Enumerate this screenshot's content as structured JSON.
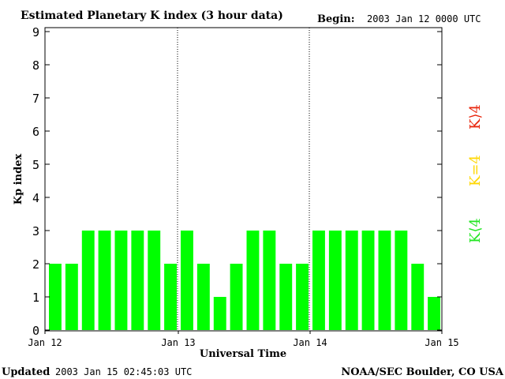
{
  "header": {
    "title": "Estimated Planetary K index (3 hour data)",
    "begin_label": "Begin:",
    "begin_value": "2003 Jan 12 0000 UTC"
  },
  "footer": {
    "updated_label": "Updated",
    "updated_value": "2003 Jan 15 02:45:03 UTC",
    "credit": "NOAA/SEC Boulder, CO USA"
  },
  "legend": {
    "items": [
      {
        "label": "K⟨4",
        "color": "#22e622"
      },
      {
        "label": "K=4",
        "color": "#ffd700"
      },
      {
        "label": "K⟩4",
        "color": "#e8250c"
      }
    ]
  },
  "chart_data": {
    "type": "bar",
    "title": "Estimated Planetary K index (3 hour data)",
    "xlabel": "Universal Time",
    "ylabel": "Kp index",
    "ylim": [
      0,
      9
    ],
    "yticks": [
      0,
      1,
      2,
      3,
      4,
      5,
      6,
      7,
      8,
      9
    ],
    "x_tick_labels": [
      "Jan 12",
      "Jan 13",
      "Jan 14",
      "Jan 15"
    ],
    "bar_color": "#00ff00",
    "day_separators": true,
    "values": [
      2,
      2,
      3,
      3,
      3,
      3,
      3,
      2,
      3,
      2,
      1,
      2,
      3,
      3,
      2,
      2,
      3,
      3,
      3,
      3,
      3,
      3,
      2,
      1
    ]
  }
}
